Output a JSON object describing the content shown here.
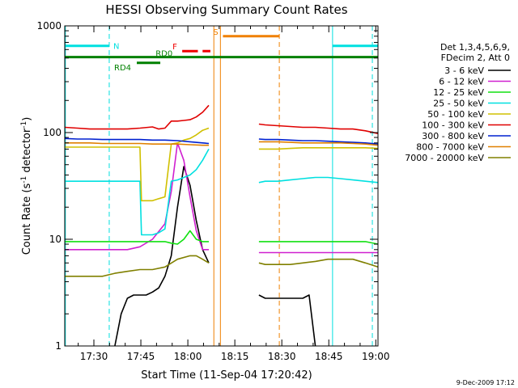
{
  "chart_data": {
    "type": "line",
    "title": "HESSI Observing Summary Count Rates",
    "xlabel": "Start Time (11-Sep-04 17:20:42)",
    "ylabel_main": "Count Rate (s",
    "ylabel_sup1": "-1",
    "ylabel_mid": " detector",
    "ylabel_sup2": "-1",
    "ylabel_end": ")",
    "yscale": "log",
    "ylim": [
      1,
      1000
    ],
    "xlim_minutes": [
      0,
      100
    ],
    "x_ticks": [
      {
        "label": "17:30",
        "min": 9.3
      },
      {
        "label": "17:45",
        "min": 24.3
      },
      {
        "label": "18:00",
        "min": 39.3
      },
      {
        "label": "18:15",
        "min": 54.3
      },
      {
        "label": "18:30",
        "min": 69.3
      },
      {
        "label": "18:45",
        "min": 84.3
      },
      {
        "label": "19:00",
        "min": 99.3
      }
    ],
    "y_ticks": [
      {
        "label": "1",
        "value": 1
      },
      {
        "label": "10",
        "value": 10
      },
      {
        "label": "100",
        "value": 100
      },
      {
        "label": "1000",
        "value": 1000
      }
    ],
    "legend_header": [
      "Det 1,3,4,5,6,9,",
      "FDecim 2, Att 0"
    ],
    "series": [
      {
        "name": "3 - 6 keV",
        "color": "#000000",
        "x": [
          0,
          6,
          8,
          10,
          12,
          14,
          16,
          18,
          20,
          22,
          24,
          26,
          28,
          30,
          32,
          34,
          36,
          38,
          40,
          42,
          44,
          46,
          48,
          52,
          56,
          60,
          62,
          64,
          66,
          68,
          70,
          72,
          74,
          76,
          78,
          80,
          82,
          84,
          86,
          88,
          90,
          92,
          94,
          96,
          98,
          100
        ],
        "y": [
          null,
          null,
          null,
          null,
          null,
          null,
          1,
          2,
          2.8,
          3,
          3,
          3,
          3.2,
          3.5,
          4.5,
          7,
          20,
          48,
          32,
          15,
          8,
          6,
          null,
          null,
          null,
          null,
          3,
          2.8,
          2.8,
          2.8,
          2.8,
          2.8,
          2.8,
          2.8,
          3,
          1,
          null,
          null,
          null,
          null,
          null,
          null,
          null,
          null,
          null,
          null
        ]
      },
      {
        "name": "6 - 12 keV",
        "color": "#d020d0",
        "x": [
          0,
          4,
          8,
          12,
          16,
          20,
          24,
          28,
          32,
          34,
          36,
          38,
          40,
          42,
          44,
          46,
          48,
          52,
          56,
          60,
          62,
          64,
          68,
          72,
          76,
          80,
          84,
          88,
          92,
          96,
          100
        ],
        "y": [
          8,
          8,
          8,
          8,
          8,
          8,
          8.5,
          10,
          14,
          28,
          80,
          55,
          25,
          12,
          8,
          8,
          null,
          null,
          null,
          null,
          7.5,
          7.5,
          7.5,
          7.5,
          7.5,
          7.5,
          7.5,
          7.5,
          7.5,
          7.5,
          7.5
        ]
      },
      {
        "name": "12 - 25 keV",
        "color": "#10e010",
        "x": [
          0,
          4,
          8,
          12,
          16,
          20,
          24,
          28,
          32,
          34,
          36,
          38,
          40,
          42,
          44,
          46,
          48,
          52,
          56,
          60,
          62,
          64,
          68,
          72,
          76,
          80,
          84,
          88,
          92,
          96,
          100
        ],
        "y": [
          9.5,
          9.5,
          9.5,
          9.5,
          9.5,
          9.5,
          9.5,
          9.5,
          9.5,
          9.2,
          9,
          10,
          12,
          10,
          9.5,
          9.5,
          null,
          null,
          null,
          null,
          9.5,
          9.5,
          9.5,
          9.5,
          9.5,
          9.5,
          9.5,
          9.5,
          9.5,
          9.5,
          9
        ]
      },
      {
        "name": "25 - 50 keV",
        "color": "#00e0e0",
        "x": [
          0,
          4,
          8,
          12,
          16,
          20,
          24,
          24.5,
          28,
          30,
          32,
          34,
          36,
          38,
          40,
          42,
          44,
          46,
          48,
          52,
          56,
          60,
          62,
          64,
          68,
          72,
          76,
          80,
          84,
          88,
          92,
          96,
          100
        ],
        "y": [
          35,
          35,
          35,
          35,
          35,
          35,
          35,
          11,
          11,
          11.5,
          12.5,
          35,
          36,
          38,
          40,
          45,
          55,
          70,
          null,
          null,
          null,
          null,
          34,
          35,
          35,
          36,
          37,
          38,
          38,
          37,
          36,
          35,
          34
        ]
      },
      {
        "name": "50 - 100 keV",
        "color": "#d0c000",
        "x": [
          0,
          4,
          8,
          12,
          16,
          20,
          24,
          24.5,
          28,
          30,
          32,
          34,
          36,
          38,
          40,
          42,
          44,
          46,
          48,
          52,
          56,
          60,
          62,
          64,
          68,
          72,
          76,
          80,
          84,
          88,
          92,
          96,
          100
        ],
        "y": [
          73,
          73,
          73,
          73,
          73,
          73,
          73,
          23,
          23,
          24,
          25,
          78,
          80,
          85,
          88,
          95,
          105,
          110,
          null,
          null,
          null,
          null,
          70,
          70,
          70,
          71,
          72,
          72,
          72,
          72,
          72,
          72,
          71
        ]
      },
      {
        "name": "100 - 300 keV",
        "color": "#e00000",
        "x": [
          0,
          4,
          8,
          12,
          16,
          20,
          24,
          28,
          30,
          32,
          34,
          36,
          38,
          40,
          42,
          44,
          46,
          48,
          52,
          56,
          60,
          62,
          64,
          68,
          72,
          76,
          80,
          84,
          88,
          92,
          96,
          100
        ],
        "y": [
          112,
          110,
          108,
          108,
          108,
          108,
          110,
          113,
          108,
          110,
          128,
          128,
          130,
          132,
          140,
          155,
          180,
          null,
          null,
          null,
          null,
          120,
          118,
          116,
          114,
          112,
          112,
          110,
          108,
          108,
          104,
          98
        ]
      },
      {
        "name": "300 - 800 keV",
        "color": "#0020d0",
        "x": [
          0,
          4,
          8,
          12,
          16,
          20,
          24,
          28,
          32,
          36,
          40,
          44,
          46,
          48,
          52,
          56,
          60,
          62,
          64,
          68,
          72,
          76,
          80,
          84,
          88,
          92,
          96,
          100
        ],
        "y": [
          88,
          87,
          87,
          86,
          86,
          86,
          86,
          85,
          85,
          84,
          82,
          80,
          79,
          null,
          null,
          null,
          null,
          87,
          86,
          86,
          85,
          84,
          84,
          83,
          82,
          81,
          80,
          78
        ]
      },
      {
        "name": "800 - 7000 keV",
        "color": "#e08000",
        "x": [
          0,
          4,
          8,
          12,
          16,
          20,
          24,
          28,
          32,
          36,
          40,
          44,
          46,
          48,
          52,
          56,
          60,
          62,
          64,
          68,
          72,
          76,
          80,
          84,
          88,
          92,
          96,
          100
        ],
        "y": [
          80,
          80,
          80,
          79,
          79,
          79,
          79,
          78,
          78,
          78,
          77,
          76,
          76,
          null,
          null,
          null,
          null,
          82,
          82,
          82,
          81,
          80,
          80,
          80,
          80,
          79,
          78,
          76
        ]
      },
      {
        "name": "7000 - 20000 keV",
        "color": "#808000",
        "x": [
          0,
          4,
          8,
          12,
          16,
          20,
          24,
          28,
          32,
          36,
          40,
          42,
          44,
          46,
          48,
          52,
          56,
          60,
          62,
          64,
          68,
          72,
          76,
          80,
          84,
          88,
          92,
          96,
          100
        ],
        "y": [
          4.5,
          4.5,
          4.5,
          4.5,
          4.8,
          5,
          5.2,
          5.2,
          5.5,
          6.5,
          7,
          7,
          6.5,
          6,
          null,
          null,
          null,
          null,
          6,
          5.8,
          5.8,
          5.8,
          6,
          6.2,
          6.5,
          6.5,
          6.5,
          6,
          5.5
        ]
      }
    ],
    "flag_bars": [
      {
        "label": "N",
        "color": "#00e0e0",
        "value": 650,
        "segments": [
          [
            0,
            14.2
          ],
          [
            85.5,
            100
          ]
        ]
      },
      {
        "label": "S",
        "color": "#f08000",
        "value": 800,
        "segments": [
          [
            50.5,
            68.5
          ]
        ]
      },
      {
        "label": "F",
        "color": "#f00000",
        "value": 580,
        "segments": [
          [
            37.5,
            42.5
          ],
          [
            44,
            46.5
          ]
        ]
      },
      {
        "label": "RD0",
        "color": "#008000",
        "value": 510,
        "segments": [
          [
            0,
            100
          ]
        ]
      },
      {
        "label": "RD4",
        "color": "#008000",
        "value": 450,
        "segments": [
          [
            23,
            30.5
          ]
        ]
      }
    ],
    "vertical_lines": [
      {
        "min": 0.2,
        "color": "#00e0e0",
        "dash": false
      },
      {
        "min": 14.2,
        "color": "#00e0e0",
        "dash": true
      },
      {
        "min": 85.5,
        "color": "#00e0e0",
        "dash": false
      },
      {
        "min": 98.2,
        "color": "#00e0e0",
        "dash": true
      },
      {
        "min": 47.6,
        "color": "#f08000",
        "dash": false
      },
      {
        "min": 49.7,
        "color": "#f08000",
        "dash": false
      },
      {
        "min": 68.5,
        "color": "#f08000",
        "dash": true
      }
    ]
  },
  "footer": {
    "timestamp": "9-Dec-2009 17:12"
  }
}
